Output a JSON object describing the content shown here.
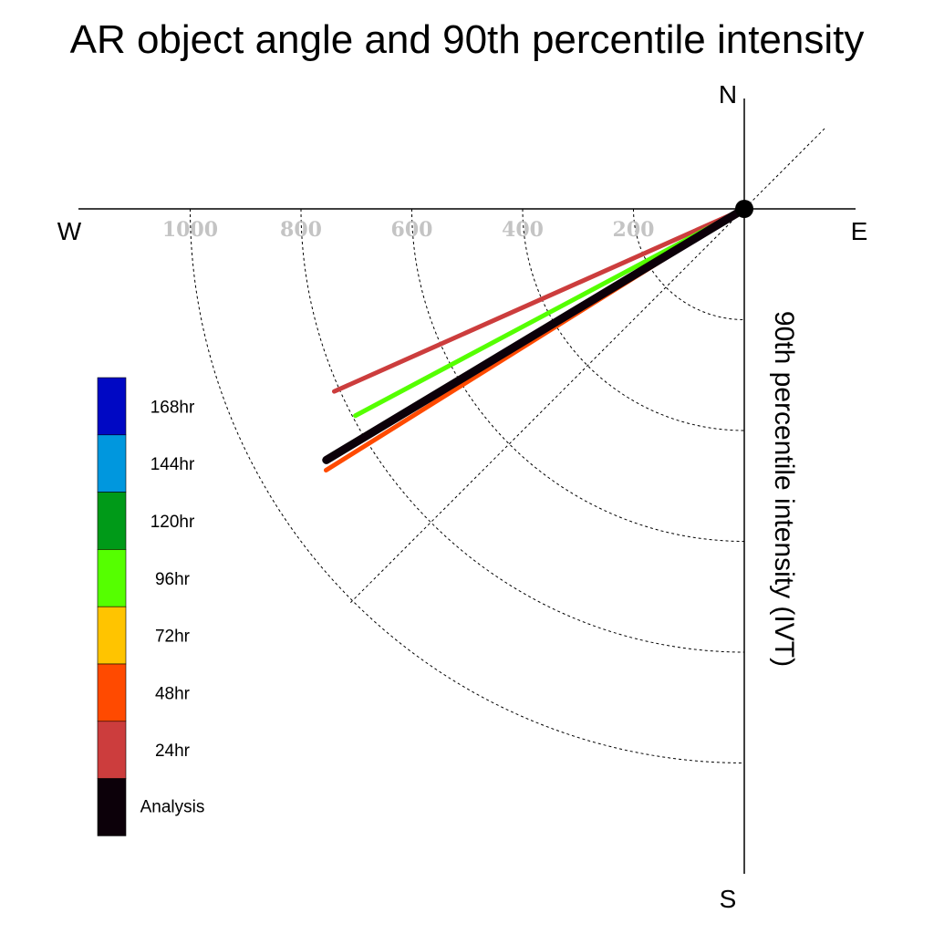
{
  "chart_data": {
    "type": "polar-line",
    "title": "AR object angle and 90th percentile intensity",
    "radial_label": "90th percentile intensity (IVT)",
    "compass": {
      "north": "N",
      "south": "S",
      "east": "E",
      "west": "W"
    },
    "radial_ticks": [
      "200",
      "400",
      "600",
      "800",
      "1000"
    ],
    "radial_tick_values": [
      200,
      400,
      600,
      800,
      1000
    ],
    "radial_range": [
      0,
      1170
    ],
    "diagonal_guide_angles_deg": [
      45,
      225
    ],
    "series": [
      {
        "name": "24hr",
        "color": "#cc3d3d",
        "angle_deg": 204,
        "intensity": 810
      },
      {
        "name": "96hr",
        "color": "#55ff00",
        "angle_deg": 208,
        "intensity": 795
      },
      {
        "name": "48hr",
        "color": "#ff4a00",
        "angle_deg": 212,
        "intensity": 890
      },
      {
        "name": "Analysis",
        "color": "#0c0009",
        "angle_deg": 211,
        "intensity": 880
      }
    ],
    "legend": [
      {
        "name": "168hr",
        "color": "#0008c4"
      },
      {
        "name": "144hr",
        "color": "#0097de"
      },
      {
        "name": "120hr",
        "color": "#009a18"
      },
      {
        "name": "96hr",
        "color": "#55ff00"
      },
      {
        "name": "72hr",
        "color": "#ffc400"
      },
      {
        "name": "48hr",
        "color": "#ff4a00"
      },
      {
        "name": "24hr",
        "color": "#cc3d3d"
      },
      {
        "name": "Analysis",
        "color": "#0c0009"
      }
    ]
  }
}
